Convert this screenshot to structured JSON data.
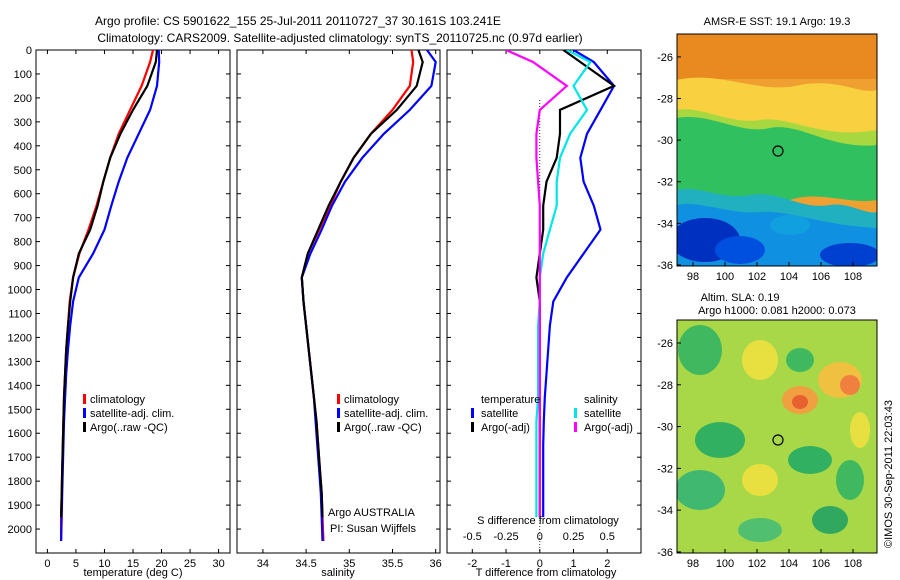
{
  "title_line1": "Argo profile: CS 5901622_155 25-Jul-2011 20110727_37 30.161S 103.241E",
  "title_line2": "Climatology: CARS2009. Satellite-adjusted climatology: synTS_20110725.nc (0.97d earlier)",
  "colors": {
    "red": "#ff0000",
    "blue": "#0000ff",
    "black": "#000000",
    "cyan": "#00e5e5",
    "magenta": "#ff00ff"
  },
  "chart_data": [
    {
      "type": "line",
      "xlabel": "temperature (deg C)",
      "xlim": [
        -2,
        32
      ],
      "xticks": [
        "0",
        "5",
        "10",
        "15",
        "20",
        "25",
        "30"
      ],
      "ylim": [
        0,
        2100
      ],
      "yticks": [
        "0",
        "100",
        "200",
        "300",
        "400",
        "500",
        "600",
        "700",
        "800",
        "900",
        "1000",
        "1100",
        "1200",
        "1300",
        "1400",
        "1500",
        "1600",
        "1700",
        "1800",
        "1900",
        "2000"
      ],
      "legend": [
        "climatology",
        "satellite-adj. clim.",
        "Argo(..raw -QC)"
      ],
      "series": [
        {
          "name": "climatology",
          "color": "red",
          "x": [
            18.5,
            18.0,
            16.5,
            14.5,
            12.5,
            11.0,
            9.8,
            8.6,
            7.2,
            5.6,
            4.5,
            3.9,
            3.6,
            3.3,
            3.1,
            2.9,
            2.8,
            2.7,
            2.6,
            2.5,
            2.4,
            2.4
          ],
          "y": [
            0,
            50,
            150,
            250,
            350,
            450,
            550,
            650,
            750,
            850,
            950,
            1050,
            1150,
            1250,
            1350,
            1450,
            1550,
            1650,
            1750,
            1850,
            1950,
            2050
          ]
        },
        {
          "name": "satellite-adj. clim.",
          "color": "blue",
          "x": [
            19.5,
            19.6,
            19.2,
            18.0,
            16.0,
            14.0,
            12.5,
            11.2,
            10.0,
            8.0,
            5.5,
            4.5,
            4.0,
            3.6,
            3.3,
            3.1,
            2.9,
            2.8,
            2.7,
            2.6,
            2.5,
            2.4
          ],
          "y": [
            0,
            50,
            150,
            250,
            350,
            450,
            550,
            650,
            750,
            850,
            950,
            1050,
            1150,
            1250,
            1350,
            1450,
            1550,
            1650,
            1750,
            1850,
            1950,
            2050
          ]
        },
        {
          "name": "Argo(..raw -QC)",
          "color": "black",
          "x": [
            19.2,
            19.0,
            17.5,
            15.0,
            12.8,
            11.0,
            9.8,
            8.8,
            7.5,
            5.5,
            4.5,
            4.0,
            3.6,
            3.3,
            3.1,
            2.9,
            2.8,
            2.7,
            2.6,
            2.5,
            2.4
          ],
          "y": [
            0,
            50,
            150,
            250,
            350,
            450,
            550,
            650,
            750,
            850,
            950,
            1050,
            1150,
            1250,
            1350,
            1450,
            1550,
            1650,
            1750,
            1850,
            1950
          ]
        }
      ]
    },
    {
      "type": "line",
      "xlabel": "salinity",
      "xlim": [
        33.7,
        36.05
      ],
      "xticks": [
        "34",
        "34.5",
        "35",
        "35.5",
        "36"
      ],
      "ylim": [
        0,
        2100
      ],
      "legend": [
        "climatology",
        "satellite-adj. clim.",
        "Argo(..raw -QC)"
      ],
      "annotations": [
        "Argo AUSTRALIA",
        "PI: Susan Wijffels"
      ],
      "series": [
        {
          "name": "climatology",
          "color": "red",
          "x": [
            35.72,
            35.74,
            35.7,
            35.5,
            35.25,
            35.05,
            34.9,
            34.78,
            34.65,
            34.52,
            34.45,
            34.47,
            34.5,
            34.53,
            34.56,
            34.59,
            34.62,
            34.64,
            34.66,
            34.68,
            34.69,
            34.7
          ],
          "y": [
            0,
            50,
            150,
            250,
            350,
            450,
            550,
            650,
            750,
            850,
            950,
            1050,
            1150,
            1250,
            1350,
            1450,
            1550,
            1650,
            1750,
            1850,
            1950,
            2050
          ]
        },
        {
          "name": "satellite-adj. clim.",
          "color": "blue",
          "x": [
            35.9,
            36.0,
            35.95,
            35.7,
            35.4,
            35.15,
            34.95,
            34.8,
            34.68,
            34.55,
            34.45,
            34.47,
            34.5,
            34.53,
            34.56,
            34.59,
            34.61,
            34.63,
            34.65,
            34.67,
            34.68,
            34.69
          ],
          "y": [
            0,
            50,
            150,
            250,
            350,
            450,
            550,
            650,
            750,
            850,
            950,
            1050,
            1150,
            1250,
            1350,
            1450,
            1550,
            1650,
            1750,
            1850,
            1950,
            2050
          ]
        },
        {
          "name": "Argo(..raw -QC)",
          "color": "black",
          "x": [
            35.8,
            35.85,
            35.78,
            35.55,
            35.25,
            35.05,
            34.9,
            34.76,
            34.64,
            34.52,
            34.45,
            34.47,
            34.5,
            34.53,
            34.56,
            34.59,
            34.62,
            34.64,
            34.66,
            34.68,
            34.69
          ],
          "y": [
            0,
            50,
            150,
            250,
            350,
            450,
            550,
            650,
            750,
            850,
            950,
            1050,
            1150,
            1250,
            1350,
            1450,
            1550,
            1650,
            1750,
            1850,
            1950
          ]
        }
      ]
    },
    {
      "type": "line",
      "xlabel": "T difference from climatology",
      "xlabel_top": "S difference from climatology",
      "xlim": [
        -2.75,
        3.0
      ],
      "xticks": [
        "-2",
        "-1",
        "0",
        "1",
        "2"
      ],
      "xticks_top": [
        "-0.5",
        "-0.25",
        "0",
        "0.25",
        "0.5"
      ],
      "ylim": [
        0,
        2100
      ],
      "legend_titles": [
        "temperature",
        "salinity"
      ],
      "legend": [
        "satellite",
        "Argo(-adj)",
        "satellite",
        "Argo(-adj)"
      ],
      "series": [
        {
          "name": "temperature satellite",
          "color": "blue",
          "x": [
            1.0,
            1.6,
            2.2,
            1.8,
            1.4,
            1.2,
            1.3,
            1.6,
            1.8,
            1.3,
            0.8,
            0.4,
            0.3,
            0.25,
            0.2,
            0.15,
            0.12,
            0.1,
            0.1,
            0.1,
            0.1
          ],
          "y": [
            0,
            50,
            150,
            250,
            350,
            450,
            550,
            650,
            750,
            850,
            950,
            1050,
            1150,
            1250,
            1350,
            1450,
            1550,
            1650,
            1750,
            1850,
            1950
          ]
        },
        {
          "name": "temperature Argo(-adj)",
          "color": "black",
          "x": [
            0.7,
            1.2,
            2.2,
            0.6,
            0.6,
            0.5,
            0.2,
            0.1,
            0.1,
            0.0,
            -0.1,
            0.0,
            0.0,
            0.0,
            0.0,
            0.0,
            0.0,
            0.0,
            0.0,
            0.0,
            0.0
          ],
          "y": [
            0,
            50,
            150,
            250,
            350,
            450,
            550,
            650,
            750,
            850,
            950,
            1050,
            1150,
            1250,
            1350,
            1450,
            1550,
            1650,
            1750,
            1850,
            1950
          ]
        },
        {
          "name": "salinity satellite",
          "color": "cyan",
          "x": [
            0.8,
            1.5,
            1.0,
            1.4,
            0.9,
            0.6,
            0.5,
            0.5,
            0.3,
            0.1,
            0.0,
            0.0,
            -0.05,
            -0.05,
            -0.05,
            -0.05,
            -0.1,
            -0.1,
            -0.1,
            -0.1,
            -0.1
          ],
          "y": [
            0,
            50,
            150,
            250,
            350,
            450,
            550,
            650,
            750,
            850,
            950,
            1050,
            1150,
            1250,
            1350,
            1450,
            1550,
            1650,
            1750,
            1850,
            1950
          ]
        },
        {
          "name": "salinity Argo(-adj)",
          "color": "magenta",
          "x": [
            -1.0,
            -0.2,
            0.8,
            0.0,
            -0.1,
            -0.1,
            -0.05,
            0.0,
            0.0,
            0.0,
            0.0,
            0.0,
            0.0,
            0.0,
            0.0,
            0.0,
            0.0,
            0.0,
            0.0,
            0.0,
            0.0
          ],
          "y": [
            0,
            50,
            150,
            250,
            350,
            450,
            550,
            650,
            750,
            850,
            950,
            1050,
            1150,
            1250,
            1350,
            1450,
            1550,
            1650,
            1750,
            1850,
            1950
          ]
        }
      ]
    },
    {
      "type": "heatmap",
      "title": "AMSR-E SST: 19.1  Argo: 19.3",
      "xticks": [
        "98",
        "100",
        "102",
        "104",
        "106",
        "108"
      ],
      "yticks": [
        "-26",
        "-28",
        "-30",
        "-32",
        "-34",
        "-36"
      ],
      "marker": {
        "lon": 103.241,
        "lat": -30.161
      }
    },
    {
      "type": "heatmap",
      "title_line1": "Altim. SLA: 0.19",
      "title_line2": "Argo h1000: 0.081 h2000: 0.073",
      "xticks": [
        "98",
        "100",
        "102",
        "104",
        "106",
        "108"
      ],
      "yticks": [
        "-26",
        "-28",
        "-30",
        "-32",
        "-34",
        "-36"
      ],
      "marker": {
        "lon": 103.241,
        "lat": -30.161
      }
    }
  ],
  "side_text": "©IMOS 30-Sep-2011 22:03:43"
}
